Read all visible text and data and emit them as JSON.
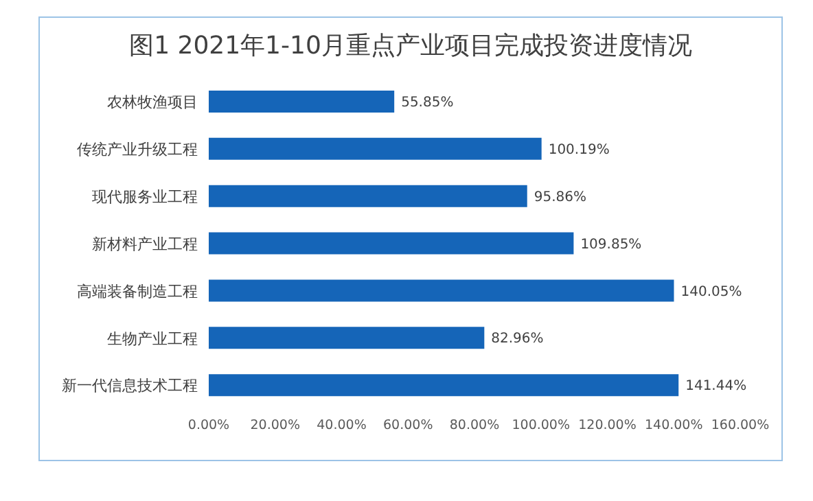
{
  "chart_data": {
    "type": "bar",
    "orientation": "horizontal",
    "title": "图1 2021年1-10月重点产业项目完成投资进度情况",
    "categories": [
      "农林牧渔项目",
      "传统产业升级工程",
      "现代服务业工程",
      "新材料产业工程",
      "高端装备制造工程",
      "生物产业工程",
      "新一代信息技术工程"
    ],
    "values": [
      55.85,
      100.19,
      95.86,
      109.85,
      140.05,
      82.96,
      141.44
    ],
    "value_labels": [
      "55.85%",
      "100.19%",
      "95.86%",
      "109.85%",
      "140.05%",
      "82.96%",
      "141.44%"
    ],
    "color": "#1565b8",
    "xlim": [
      0,
      160
    ],
    "xticks": [
      {
        "value": 0,
        "label": "0.00%"
      },
      {
        "value": 20,
        "label": "20.00%"
      },
      {
        "value": 40,
        "label": "40.00%"
      },
      {
        "value": 60,
        "label": "60.00%"
      },
      {
        "value": 80,
        "label": "80.00%"
      },
      {
        "value": 100,
        "label": "100.00%"
      },
      {
        "value": 120,
        "label": "120.00%"
      },
      {
        "value": 140,
        "label": "140.00%"
      },
      {
        "value": 160,
        "label": "160.00%"
      }
    ],
    "grid": false,
    "legend": false
  }
}
